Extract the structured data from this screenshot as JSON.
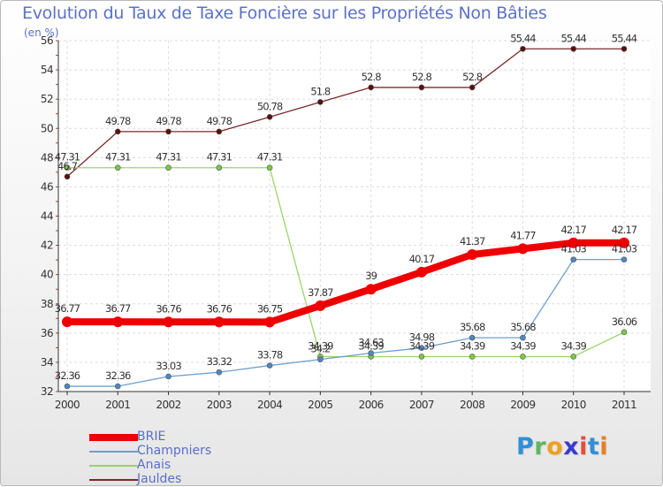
{
  "title": "Evolution du Taux de Taxe Foncière sur les Propriétés Non Bâties",
  "unit": "(en %)",
  "logo": {
    "text": "Proxiti",
    "colors": [
      "#2f8fd8",
      "#5cb85c",
      "#f0a020",
      "#3a3acd",
      "#e74c3c",
      "#2f8fd8",
      "#e67e22"
    ]
  },
  "chart_data": {
    "type": "line",
    "x": [
      "2000",
      "2001",
      "2002",
      "2003",
      "2004",
      "2005",
      "2006",
      "2007",
      "2008",
      "2009",
      "2010",
      "2011"
    ],
    "ylim": [
      32,
      56
    ],
    "yticks": [
      "32",
      "34",
      "36",
      "38",
      "40",
      "42",
      "44",
      "46",
      "48",
      "50",
      "52",
      "54",
      "56"
    ],
    "legend_position": "bottom-left",
    "series": [
      {
        "name": "Jauldes",
        "color": "#7a2a2a",
        "dot": "#5a0f0f",
        "width": 1.3,
        "r": 3,
        "values": [
          46.7,
          49.78,
          49.78,
          49.78,
          50.78,
          51.8,
          52.8,
          52.8,
          52.8,
          55.44,
          55.44,
          55.44
        ],
        "labels": [
          "46.7",
          "49.78",
          "49.78",
          "49.78",
          "50.78",
          "51.8",
          "52.8",
          "52.8",
          "52.8",
          "55.44",
          "55.44",
          "55.44"
        ]
      },
      {
        "name": "Anais",
        "color": "#9ad56a",
        "dot": "#7cc845",
        "width": 1.3,
        "r": 3,
        "values": [
          47.31,
          47.31,
          47.31,
          47.31,
          47.31,
          34.39,
          34.39,
          34.39,
          34.39,
          34.39,
          34.39,
          36.06
        ],
        "labels": [
          "47.31",
          "47.31",
          "47.31",
          "47.31",
          "47.31",
          "34.39",
          "34.39",
          "34.39",
          "34.39",
          "34.39",
          "34.39",
          "36.06"
        ]
      },
      {
        "name": "Champniers",
        "color": "#6f9fcf",
        "dot": "#4f87c4",
        "width": 1.3,
        "r": 3,
        "values": [
          32.36,
          32.36,
          33.03,
          33.32,
          33.78,
          34.2,
          34.63,
          34.98,
          35.68,
          35.68,
          41.03,
          41.03
        ],
        "labels": [
          "32.36",
          "32.36",
          "33.03",
          "33.32",
          "33.78",
          "34.2",
          "34.63",
          "34.98",
          "35.68",
          "35.68",
          "41.03",
          "41.03"
        ]
      },
      {
        "name": "BRIE",
        "color": "#ee0000",
        "dot": "#ee0000",
        "width": 8,
        "r": 6,
        "values": [
          36.77,
          36.77,
          36.76,
          36.76,
          36.75,
          37.87,
          39,
          40.17,
          41.37,
          41.77,
          42.17,
          42.17
        ],
        "labels": [
          "36.77",
          "36.77",
          "36.76",
          "36.76",
          "36.75",
          "37.87",
          "39",
          "40.17",
          "41.37",
          "41.77",
          "42.17",
          "42.17"
        ]
      }
    ],
    "legend": [
      "BRIE",
      "Champniers",
      "Anais",
      "Jauldes"
    ]
  }
}
